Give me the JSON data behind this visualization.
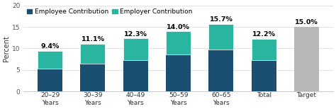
{
  "categories": [
    "20–29\nYears",
    "30–39\nYears",
    "40–49\nYears",
    "50–59\nYears",
    "60–65\nYears",
    "Total",
    "Target"
  ],
  "employee": [
    5.3,
    6.5,
    7.3,
    8.5,
    9.8,
    7.3,
    0
  ],
  "employer": [
    4.1,
    4.6,
    5.0,
    5.5,
    5.9,
    4.9,
    0
  ],
  "target_val": 15.0,
  "totals": [
    "9.4%",
    "11.1%",
    "12.3%",
    "14.0%",
    "15.7%",
    "12.2%",
    "15.0%"
  ],
  "employee_color": "#1a4f72",
  "employer_color": "#2ab5a0",
  "target_color": "#b8b8b8",
  "ylabel": "Percent",
  "ylim": [
    0,
    20
  ],
  "yticks": [
    0,
    5,
    10,
    15,
    20
  ],
  "legend_employee": "Employee Contribution",
  "legend_employer": "Employer Contribution",
  "bg_color": "#ffffff",
  "fontsize_label": 6.5,
  "fontsize_pct": 6.8,
  "fontsize_legend": 6.5,
  "fontsize_ylabel": 7
}
